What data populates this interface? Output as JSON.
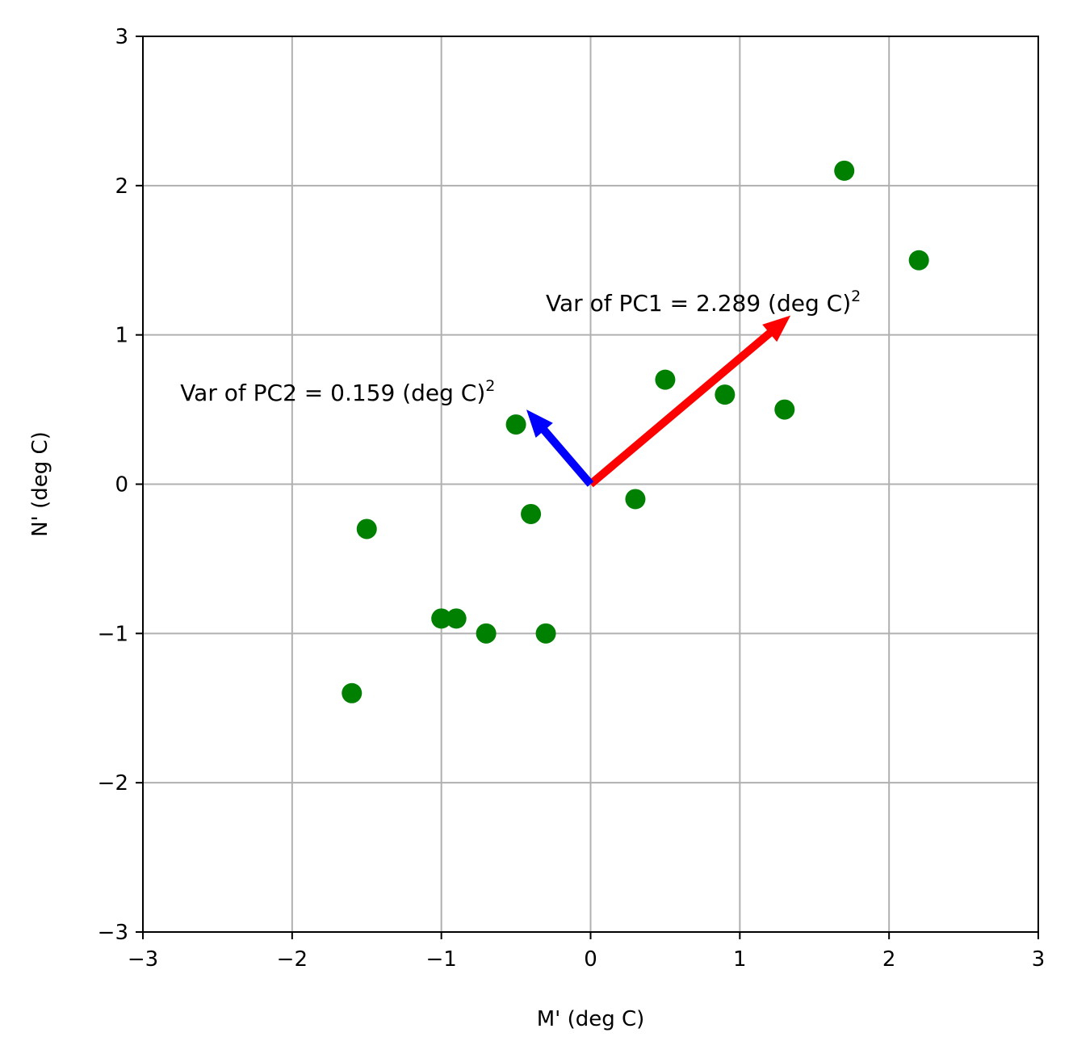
{
  "chart_data": {
    "type": "scatter",
    "xlabel": "M' (deg C)",
    "ylabel": "N' (deg C)",
    "xlim": [
      -3,
      3
    ],
    "ylim": [
      -3,
      3
    ],
    "xticks": [
      -3,
      -2,
      -1,
      0,
      1,
      2,
      3
    ],
    "yticks": [
      -3,
      -2,
      -1,
      0,
      1,
      2,
      3
    ],
    "xtick_labels": [
      "−3",
      "−2",
      "−1",
      "0",
      "1",
      "2",
      "3"
    ],
    "ytick_labels": [
      "−3",
      "−2",
      "−1",
      "0",
      "1",
      "2",
      "3"
    ],
    "grid": true,
    "points": [
      {
        "x": 1.7,
        "y": 2.1
      },
      {
        "x": 2.2,
        "y": 1.5
      },
      {
        "x": 0.5,
        "y": 0.7
      },
      {
        "x": 0.9,
        "y": 0.6
      },
      {
        "x": 1.3,
        "y": 0.5
      },
      {
        "x": -0.5,
        "y": 0.4
      },
      {
        "x": 0.3,
        "y": -0.1
      },
      {
        "x": -0.4,
        "y": -0.2
      },
      {
        "x": -1.5,
        "y": -0.3
      },
      {
        "x": -1.0,
        "y": -0.9
      },
      {
        "x": -0.9,
        "y": -0.9
      },
      {
        "x": -0.7,
        "y": -1.0
      },
      {
        "x": -0.3,
        "y": -1.0
      },
      {
        "x": -1.6,
        "y": -1.4
      }
    ],
    "point_color": "#008000",
    "arrows": [
      {
        "name": "PC1",
        "dx": 1.34,
        "dy": 1.13,
        "color": "#ff0000"
      },
      {
        "name": "PC2",
        "dx": -0.43,
        "dy": 0.5,
        "color": "#0000ff"
      }
    ],
    "annotations": [
      {
        "text": "Var of PC1 = 2.289 (deg C)",
        "sup": "2",
        "x": -0.3,
        "y": 1.15
      },
      {
        "text": "Var of PC2 = 0.159 (deg C)",
        "sup": "2",
        "x": -2.75,
        "y": 0.55
      }
    ]
  }
}
